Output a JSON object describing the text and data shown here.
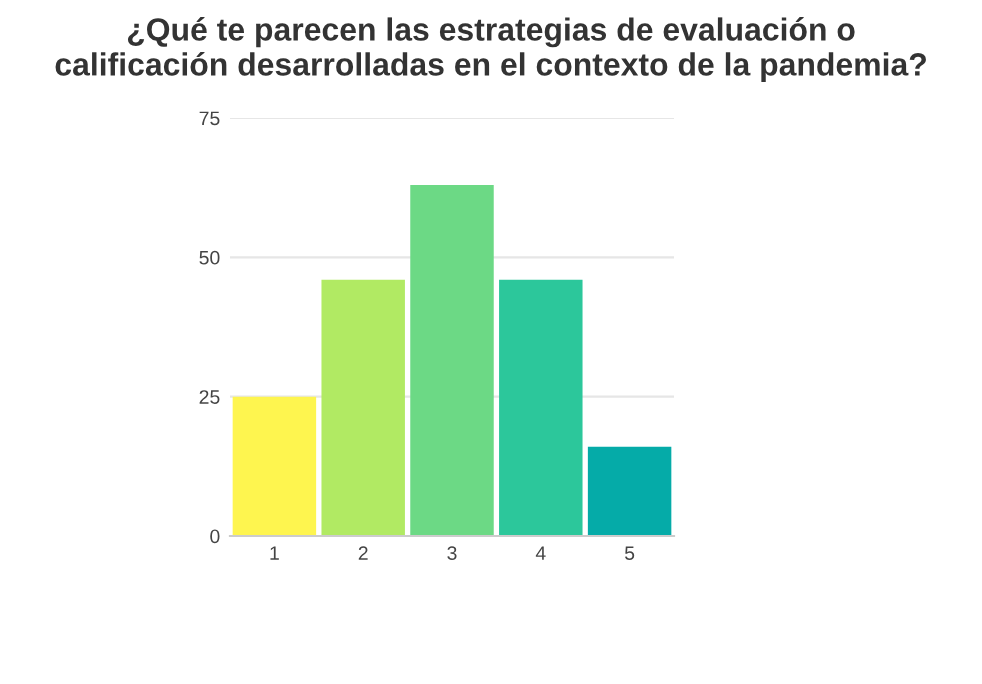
{
  "chart_data": {
    "type": "bar",
    "title": "¿Qué te parecen las estrategias de evaluación o\ncalificación desarrolladas en el contexto de la pandemia?",
    "categories": [
      "1",
      "2",
      "3",
      "4",
      "5"
    ],
    "values": [
      25,
      46,
      63,
      46,
      16
    ],
    "colors": [
      "#fef54f",
      "#b1ea63",
      "#6cd985",
      "#2cc79b",
      "#05aba8"
    ],
    "ylim": [
      0,
      75
    ],
    "yticks": [
      0,
      25,
      50,
      75
    ],
    "grid": "y"
  }
}
